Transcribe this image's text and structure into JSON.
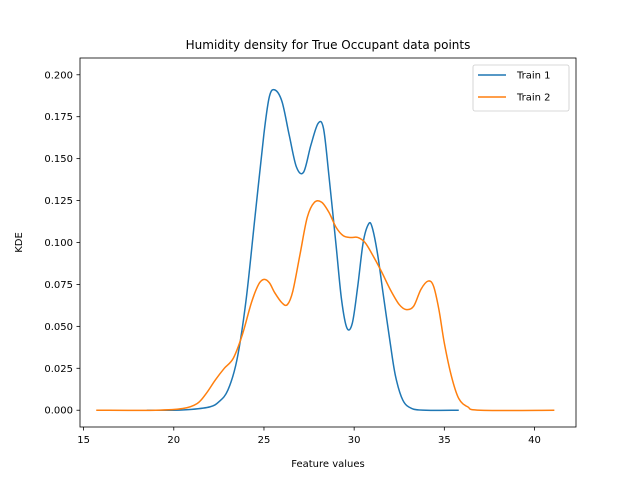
{
  "chart_data": {
    "type": "line",
    "title": "Humidity density for True Occupant data points",
    "xlabel": "Feature values",
    "ylabel": "KDE",
    "xlim": [
      14.8,
      42.3
    ],
    "ylim": [
      -0.01,
      0.21
    ],
    "xticks": [
      15,
      20,
      25,
      30,
      35,
      40
    ],
    "yticks": [
      0.0,
      0.025,
      0.05,
      0.075,
      0.1,
      0.125,
      0.15,
      0.175,
      0.2
    ],
    "ytick_labels": [
      "0.000",
      "0.025",
      "0.050",
      "0.075",
      "0.100",
      "0.125",
      "0.150",
      "0.175",
      "0.200"
    ],
    "grid": false,
    "legend_position": "top-right",
    "series": [
      {
        "name": "Train 1",
        "color": "#1f77b4",
        "x": [
          18.5,
          20.0,
          21.0,
          22.0,
          22.5,
          23.0,
          23.5,
          24.0,
          24.5,
          25.0,
          25.3,
          25.6,
          26.0,
          26.4,
          26.8,
          27.2,
          27.6,
          28.0,
          28.3,
          28.6,
          29.0,
          29.3,
          29.6,
          29.9,
          30.2,
          30.5,
          30.8,
          31.0,
          31.3,
          31.6,
          32.0,
          32.3,
          32.7,
          33.2,
          34.0,
          35.8
        ],
        "y": [
          0.0,
          0.0,
          0.0005,
          0.002,
          0.005,
          0.012,
          0.03,
          0.065,
          0.115,
          0.165,
          0.187,
          0.191,
          0.184,
          0.164,
          0.145,
          0.142,
          0.158,
          0.171,
          0.168,
          0.14,
          0.098,
          0.066,
          0.049,
          0.052,
          0.074,
          0.1,
          0.111,
          0.109,
          0.093,
          0.07,
          0.04,
          0.02,
          0.006,
          0.001,
          0.0,
          0.0
        ]
      },
      {
        "name": "Train 2",
        "color": "#ff7f0e",
        "x": [
          15.7,
          19.0,
          20.5,
          21.3,
          21.8,
          22.3,
          22.8,
          23.3,
          23.8,
          24.3,
          24.7,
          25.0,
          25.3,
          25.6,
          26.0,
          26.3,
          26.6,
          27.0,
          27.4,
          27.8,
          28.2,
          28.6,
          29.0,
          29.4,
          29.8,
          30.2,
          30.6,
          31.0,
          31.5,
          32.0,
          32.5,
          32.9,
          33.3,
          33.7,
          34.1,
          34.4,
          34.7,
          35.0,
          35.4,
          35.8,
          36.3,
          37.0,
          41.1
        ],
        "y": [
          0.0,
          0.0,
          0.001,
          0.004,
          0.01,
          0.018,
          0.025,
          0.031,
          0.045,
          0.064,
          0.075,
          0.078,
          0.076,
          0.07,
          0.064,
          0.063,
          0.071,
          0.093,
          0.115,
          0.124,
          0.124,
          0.118,
          0.109,
          0.104,
          0.103,
          0.103,
          0.1,
          0.093,
          0.083,
          0.072,
          0.063,
          0.06,
          0.062,
          0.072,
          0.077,
          0.074,
          0.06,
          0.04,
          0.02,
          0.007,
          0.002,
          0.0,
          0.0
        ]
      }
    ]
  }
}
